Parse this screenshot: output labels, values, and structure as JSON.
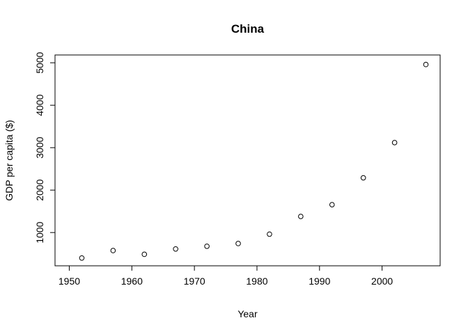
{
  "chart_data": {
    "type": "scatter",
    "title": "China",
    "xlabel": "Year",
    "ylabel": "GDP per capita ($)",
    "xlim": [
      1950,
      2007
    ],
    "ylim": [
      400,
      5000
    ],
    "xticks": [
      1950,
      1960,
      1970,
      1980,
      1990,
      2000
    ],
    "yticks": [
      1000,
      2000,
      3000,
      4000,
      5000
    ],
    "x": [
      1952,
      1957,
      1962,
      1967,
      1972,
      1977,
      1982,
      1987,
      1992,
      1997,
      2002,
      2007
    ],
    "y": [
      400,
      575,
      487,
      613,
      677,
      741,
      962,
      1379,
      1656,
      2289,
      3119,
      4959
    ],
    "marker": "open-circle",
    "grid": false,
    "legend": "none"
  }
}
